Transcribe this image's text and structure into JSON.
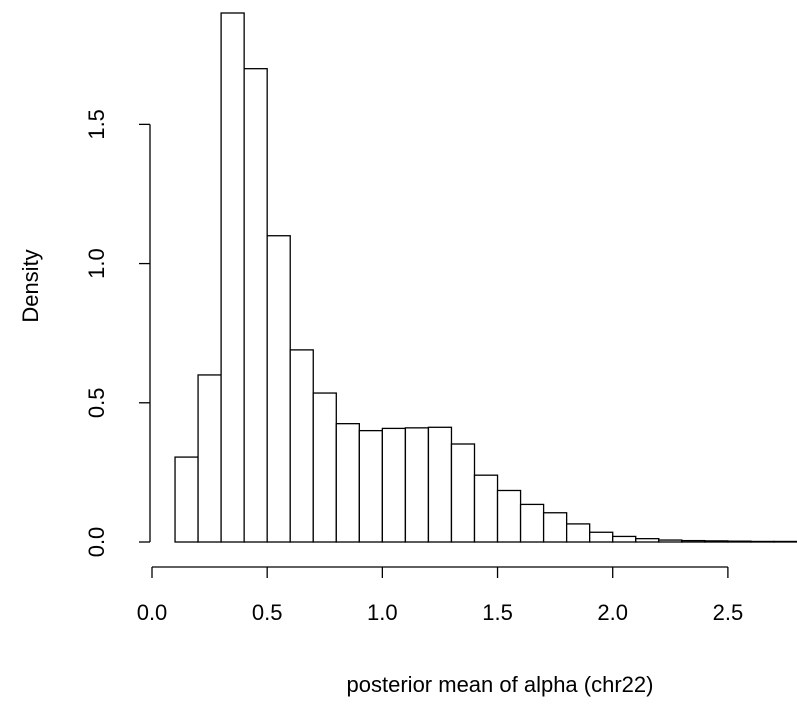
{
  "chart_data": {
    "type": "bar",
    "title": "",
    "xlabel": "posterior mean of alpha (chr22)",
    "ylabel": "Density",
    "xlim": [
      0.0,
      2.8
    ],
    "ylim": [
      0.0,
      1.9
    ],
    "x_ticks": [
      0.0,
      0.5,
      1.0,
      1.5,
      2.0,
      2.5
    ],
    "x_tick_labels": [
      "0.0",
      "0.5",
      "1.0",
      "1.5",
      "2.0",
      "2.5"
    ],
    "y_ticks": [
      0.0,
      0.5,
      1.0,
      1.5
    ],
    "y_tick_labels": [
      "0.0",
      "0.5",
      "1.0",
      "1.5"
    ],
    "bin_width": 0.1,
    "bins": [
      {
        "x0": 0.1,
        "x1": 0.2,
        "value": 0.305
      },
      {
        "x0": 0.2,
        "x1": 0.3,
        "value": 0.6
      },
      {
        "x0": 0.3,
        "x1": 0.4,
        "value": 1.9
      },
      {
        "x0": 0.4,
        "x1": 0.5,
        "value": 1.7
      },
      {
        "x0": 0.5,
        "x1": 0.6,
        "value": 1.1
      },
      {
        "x0": 0.6,
        "x1": 0.7,
        "value": 0.69
      },
      {
        "x0": 0.7,
        "x1": 0.8,
        "value": 0.535
      },
      {
        "x0": 0.8,
        "x1": 0.9,
        "value": 0.425
      },
      {
        "x0": 0.9,
        "x1": 1.0,
        "value": 0.4
      },
      {
        "x0": 1.0,
        "x1": 1.1,
        "value": 0.408
      },
      {
        "x0": 1.1,
        "x1": 1.2,
        "value": 0.41
      },
      {
        "x0": 1.2,
        "x1": 1.3,
        "value": 0.412
      },
      {
        "x0": 1.3,
        "x1": 1.4,
        "value": 0.352
      },
      {
        "x0": 1.4,
        "x1": 1.5,
        "value": 0.24
      },
      {
        "x0": 1.5,
        "x1": 1.6,
        "value": 0.185
      },
      {
        "x0": 1.6,
        "x1": 1.7,
        "value": 0.135
      },
      {
        "x0": 1.7,
        "x1": 1.8,
        "value": 0.105
      },
      {
        "x0": 1.8,
        "x1": 1.9,
        "value": 0.065
      },
      {
        "x0": 1.9,
        "x1": 2.0,
        "value": 0.035
      },
      {
        "x0": 2.0,
        "x1": 2.1,
        "value": 0.02
      },
      {
        "x0": 2.1,
        "x1": 2.2,
        "value": 0.012
      },
      {
        "x0": 2.2,
        "x1": 2.3,
        "value": 0.007
      },
      {
        "x0": 2.3,
        "x1": 2.4,
        "value": 0.005
      },
      {
        "x0": 2.4,
        "x1": 2.5,
        "value": 0.004
      },
      {
        "x0": 2.5,
        "x1": 2.6,
        "value": 0.003
      },
      {
        "x0": 2.6,
        "x1": 2.7,
        "value": 0.002
      },
      {
        "x0": 2.7,
        "x1": 2.8,
        "value": 0.002
      }
    ]
  }
}
